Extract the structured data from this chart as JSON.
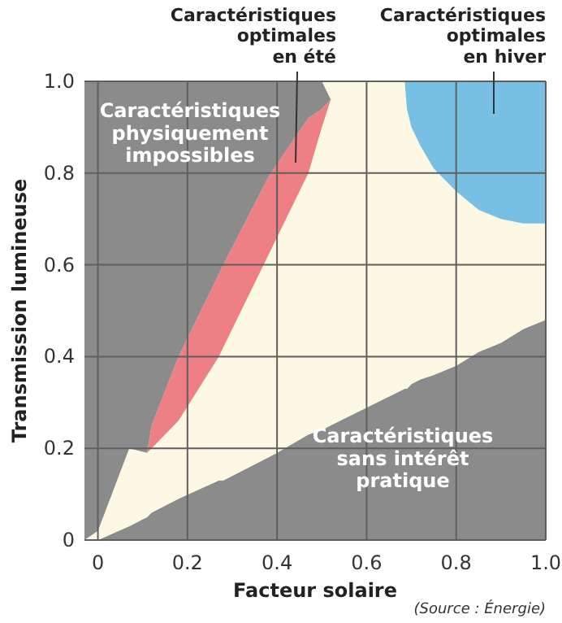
{
  "chart_data": {
    "type": "area",
    "stacked": true,
    "xlabel": "Facteur solaire",
    "ylabel": "Transmission lumineuse",
    "xlim": [
      -0.03,
      1.0
    ],
    "ylim": [
      0,
      1.0
    ],
    "xticks": [
      0,
      0.2,
      0.4,
      0.6,
      0.8,
      {
        "value": 1,
        "label": "1.0"
      }
    ],
    "yticks": [
      0,
      0.2,
      0.4,
      0.6,
      0.8,
      {
        "value": 1,
        "label": "1.0"
      }
    ],
    "grid": true,
    "x": [
      -0.03,
      0,
      0.07,
      0.11,
      0.12,
      0.18,
      0.27,
      0.28,
      0.38,
      0.4,
      0.47,
      0.5,
      0.52,
      0.685,
      0.69,
      0.7,
      0.72,
      0.75,
      0.8,
      0.85,
      0.9,
      0.95,
      1.0
    ],
    "series": [
      {
        "color": "#8c8b8b",
        "values": [
          null,
          0,
          0.03,
          0.05,
          0.06,
          0.09,
          0.13,
          0.13,
          0.18,
          0.19,
          0.23,
          0.24,
          0.25,
          0.33,
          0.33,
          0.34,
          0.35,
          0.36,
          0.38,
          0.41,
          0.43,
          0.46,
          0.48
        ]
      },
      {
        "color": "#fdf8e3",
        "values": [
          null,
          0.02,
          0.17,
          0.14,
          0.14,
          0.17,
          0.27,
          0.29,
          0.44,
          0.47,
          0.57,
          0.66,
          0.71,
          0.67,
          0.61,
          0.56,
          0.51,
          0.45,
          0.38,
          0.31,
          0.27,
          0.23,
          0.21
        ]
      },
      {
        "color": "#ee7f84",
        "values": [
          null,
          null,
          null,
          0,
          0.05,
          0.14,
          0.18,
          0.18,
          0.17,
          0.16,
          0.12,
          0.04,
          0,
          null,
          null,
          null,
          null,
          null,
          null,
          null,
          null,
          null,
          null
        ]
      },
      {
        "color": "#8c8b8b",
        "values": [
          1.0,
          0.98,
          0.8,
          0.81,
          0.75,
          0.6,
          0.42,
          0.4,
          0.21,
          0.18,
          0.08,
          0.06,
          0,
          null,
          null,
          null,
          null,
          null,
          null,
          null,
          null,
          null,
          null
        ]
      },
      {
        "color": "#78bfe4",
        "values": [
          null,
          null,
          null,
          null,
          null,
          null,
          null,
          null,
          null,
          null,
          null,
          null,
          null,
          0,
          0.06,
          0.1,
          0.14,
          0.19,
          0.24,
          0.28,
          0.3,
          0.31,
          0.31
        ]
      }
    ],
    "annotations": [
      "Caractéristiques\noptimales\nen été",
      "Caractéristiques\noptimales\nen hiver",
      "Caractéristiques\nphysiquement\nimpossibles",
      "Caractéristiques\nsans intérêt\npratique",
      "(Source : Énergie)"
    ]
  }
}
